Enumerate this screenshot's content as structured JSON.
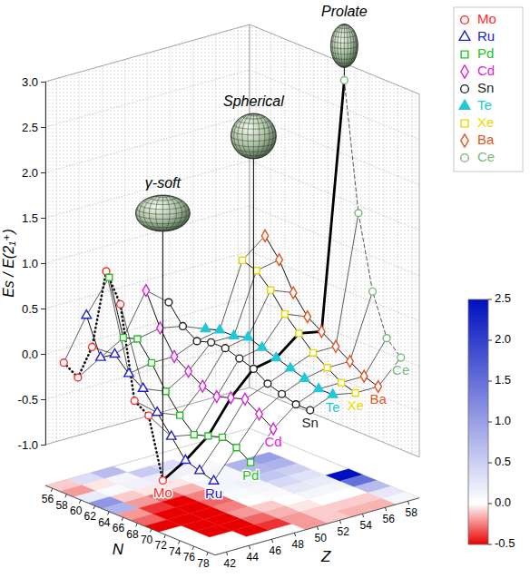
{
  "chart_data": {
    "type": "line3d",
    "x_label": "N",
    "z_label": "Z",
    "y_label": "Es / E(2₁⁺)",
    "xlim": [
      55,
      79
    ],
    "xticks": [
      56,
      58,
      60,
      62,
      64,
      66,
      68,
      70,
      72,
      74,
      76,
      78
    ],
    "zlim": [
      41,
      59
    ],
    "zticks": [
      42,
      44,
      46,
      48,
      50,
      52,
      54,
      56,
      58
    ],
    "ylim": [
      -1,
      3
    ],
    "yticks": [
      {
        "value": -1,
        "label": "-1.0"
      },
      -0.5,
      {
        "value": 0,
        "label": "0.0"
      },
      0.5,
      {
        "value": 1,
        "label": "1.0"
      },
      1.5,
      {
        "value": 2,
        "label": "2.0"
      },
      2.5,
      {
        "value": 3,
        "label": "3.0"
      }
    ],
    "grid": true,
    "legend": "top-right",
    "series": [
      {
        "name": "Mo",
        "color": "#ff2a2a",
        "marker": "circle",
        "line_style": "dotted",
        "z": 42,
        "x": [
          56,
          58,
          60,
          62,
          64,
          66,
          68,
          70
        ],
        "values": [
          -0.1,
          -0.2,
          0.2,
          1.1,
          0.8,
          -0.2,
          -0.3,
          -0.95
        ]
      },
      {
        "name": "Ru",
        "color": "#2020d0",
        "marker": "triangle",
        "line_style": "solid",
        "z": 44,
        "x": [
          56,
          58,
          60,
          62,
          64,
          66,
          68,
          70,
          72,
          74
        ],
        "values": [
          0.35,
          -0.05,
          0.05,
          -0.1,
          -0.2,
          -0.4,
          -0.6,
          -0.8,
          -0.85,
          -0.9
        ]
      },
      {
        "name": "Pd",
        "color": "#22c022",
        "marker": "square",
        "line_style": "solid",
        "z": 46,
        "x": [
          56,
          58,
          60,
          62,
          64,
          66,
          68,
          70,
          72,
          74,
          76
        ],
        "values": [
          0.7,
          0.1,
          0.15,
          -0.05,
          -0.3,
          -0.5,
          -0.65,
          -0.6,
          -0.55,
          -0.6,
          -0.7
        ]
      },
      {
        "name": "Cd",
        "color": "#dd22dd",
        "marker": "diamond",
        "line_style": "solid",
        "z": 48,
        "x": [
          58,
          60,
          62,
          64,
          66,
          68,
          70,
          72,
          74,
          76
        ],
        "values": [
          0.55,
          0.2,
          -0.05,
          -0.15,
          -0.25,
          -0.3,
          -0.25,
          -0.2,
          -0.3,
          -0.4
        ]
      },
      {
        "name": "Sn",
        "color": "#222222",
        "marker": "circle",
        "line_style": "solid",
        "z": 50,
        "x": [
          58,
          60,
          62,
          64,
          66,
          68,
          70,
          72,
          74,
          76,
          78
        ],
        "values": [
          0.35,
          0.15,
          0.05,
          0.1,
          0.1,
          0.05,
          0.0,
          -0.1,
          -0.15,
          -0.2,
          -0.2
        ]
      },
      {
        "name": "Te",
        "color": "#20c8d8",
        "marker": "triangle-filled",
        "line_style": "solid",
        "z": 52,
        "x": [
          60,
          62,
          64,
          66,
          68,
          70,
          72,
          74,
          76,
          78
        ],
        "values": [
          0.05,
          0.1,
          0.1,
          0.15,
          0.1,
          0.05,
          0.0,
          -0.05,
          -0.1,
          -0.1
        ]
      },
      {
        "name": "Xe",
        "color": "#e6d800",
        "marker": "square",
        "line_style": "solid",
        "z": 54,
        "x": [
          62,
          64,
          66,
          68,
          70,
          72,
          74,
          76,
          78
        ],
        "values": [
          0.8,
          0.75,
          0.6,
          0.4,
          0.25,
          0.1,
          0.0,
          -0.1,
          -0.15
        ]
      },
      {
        "name": "Ba",
        "color": "#e8501a",
        "marker": "diamond",
        "line_style": "solid",
        "z": 56,
        "x": [
          62,
          64,
          66,
          68,
          70,
          72,
          74,
          76,
          78
        ],
        "values": [
          1.0,
          0.8,
          0.5,
          0.3,
          0.2,
          0.1,
          0.0,
          -0.1,
          -0.15
        ]
      },
      {
        "name": "Ce",
        "color": "#78b878",
        "marker": "circle",
        "line_style": "dashed",
        "z": 58,
        "x": [
          70,
          72,
          74,
          76,
          78
        ],
        "values": [
          2.9,
          1.5,
          0.7,
          0.25,
          0.1
        ]
      }
    ],
    "annotations": [
      {
        "text": "γ-soft",
        "series": "Mo",
        "x": 70,
        "marker": "oblate"
      },
      {
        "text": "Spherical",
        "series": "Sn",
        "x": 70,
        "marker": "sphere"
      },
      {
        "text": "Prolate",
        "series": "Ce",
        "x": 70,
        "marker": "prolate"
      }
    ],
    "colorbar": {
      "range": [
        -0.5,
        2.5
      ],
      "ticks": [
        -0.5,
        {
          "value": 0,
          "label": "0.0"
        },
        0.5,
        {
          "value": 1,
          "label": "1.0"
        },
        1.5,
        {
          "value": 2,
          "label": "2.0"
        },
        2.5
      ],
      "colors": [
        "#e80000",
        "#ffffff",
        "#0010c0"
      ]
    }
  }
}
